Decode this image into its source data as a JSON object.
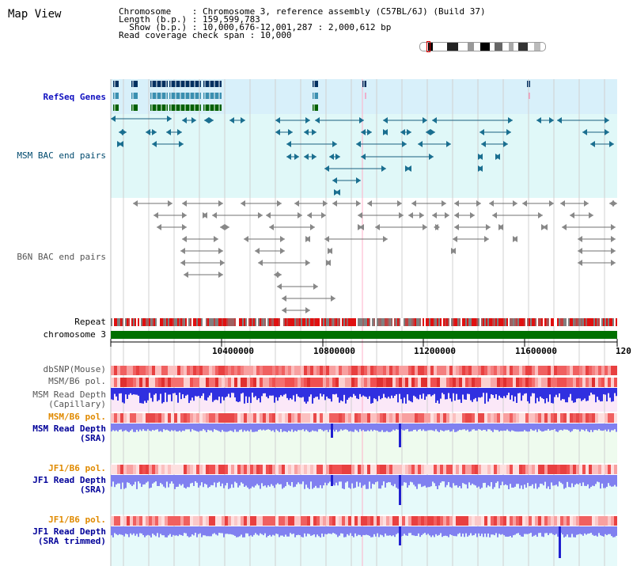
{
  "header": {
    "title": "Map View",
    "lines": [
      "Chromosome    : Chromosome 3, reference assembly (C57BL/6J) (Build 37)",
      "Length (b.p.) : 159,599,783",
      "  Show (b.p.) : 10,000,676-12,001,287 : 2,000,612 bp",
      "Read coverage check span : 10,000"
    ]
  },
  "tracks": {
    "refseq": "RefSeq Genes",
    "msm_bac": "MSM BAC end pairs",
    "b6n_bac": "B6N BAC end pairs",
    "repeat": "Repeat",
    "chromosome": "chromosome 3",
    "dbsnp": "dbSNP(Mouse)",
    "msm_b6_pol_1": "MSM/B6 pol.",
    "msm_read_depth_cap_1": "MSM Read Depth",
    "msm_read_depth_cap_2": "(Capillary)",
    "msm_b6_pol_2": "MSM/B6 pol.",
    "msm_read_depth_sra_1": "MSM Read Depth",
    "msm_read_depth_sra_2": "(SRA)",
    "jf1_b6_pol_1": "JF1/B6 pol.",
    "jf1_read_depth_sra_1": "JF1 Read Depth",
    "jf1_read_depth_sra_2": "(SRA)",
    "jf1_b6_pol_2": "JF1/B6 pol.",
    "jf1_read_depth_trim_1": "JF1 Read Depth",
    "jf1_read_depth_trim_2": "(SRA trimmed)"
  },
  "axis": {
    "ticks": [
      "10400000",
      "10800000",
      "11200000",
      "11600000",
      "120"
    ]
  },
  "colors": {
    "refseq_bg": "#d8f0fa",
    "msm_bg": "#e0f8f8",
    "repeat_red": "#e01010",
    "chrom_green": "#007000",
    "read_depth_blue": "#3030e0",
    "pol_red": "#f05050"
  }
}
